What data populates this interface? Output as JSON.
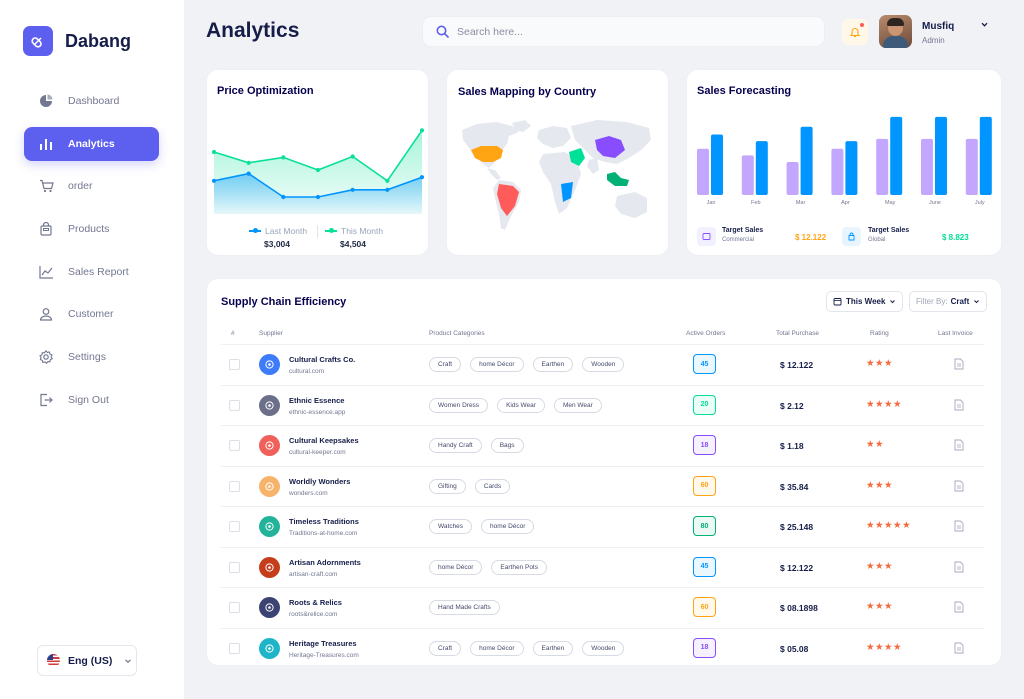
{
  "app": {
    "name": "Dabang"
  },
  "sidebar": {
    "items": [
      {
        "label": "Dashboard",
        "icon": "pie-chart-icon",
        "active": false
      },
      {
        "label": "Analytics",
        "icon": "bar-chart-icon",
        "active": true
      },
      {
        "label": "order",
        "icon": "cart-icon",
        "active": false
      },
      {
        "label": "Products",
        "icon": "bag-icon",
        "active": false
      },
      {
        "label": "Sales Report",
        "icon": "line-chart-icon",
        "active": false
      },
      {
        "label": "Customer",
        "icon": "user-icon",
        "active": false
      },
      {
        "label": "Settings",
        "icon": "gear-icon",
        "active": false
      },
      {
        "label": "Sign Out",
        "icon": "sign-out-icon",
        "active": false
      }
    ],
    "language": "Eng (US)"
  },
  "header": {
    "title": "Analytics",
    "search_placeholder": "Search here...",
    "user": {
      "name": "Musfiq",
      "role": "Admin"
    }
  },
  "price_optimization": {
    "title": "Price Optimization",
    "legend": [
      {
        "name": "Last Month",
        "value": "$3,004",
        "color": "#0095ff"
      },
      {
        "name": "This Month",
        "value": "$4,504",
        "color": "#07e098"
      }
    ]
  },
  "sales_mapping": {
    "title": "Sales Mapping by Country"
  },
  "sales_forecasting": {
    "title": "Sales Forecasting",
    "targets": [
      {
        "title": "Target Sales",
        "sub": "Commercial",
        "value": "$ 12.122",
        "color": "#ffa412"
      },
      {
        "title": "Target Sales",
        "sub": "Global",
        "value": "$ 8.823",
        "color": "#00e096"
      }
    ]
  },
  "chart_data": [
    {
      "type": "area",
      "title": "Price Optimization",
      "x": [
        1,
        2,
        3,
        4,
        5,
        6,
        7
      ],
      "series": [
        {
          "name": "This Month",
          "values": [
            60,
            48,
            54,
            40,
            55,
            28,
            84
          ],
          "color": "#07e098"
        },
        {
          "name": "Last Month",
          "values": [
            28,
            36,
            10,
            10,
            18,
            18,
            32
          ],
          "color": "#0095ff"
        }
      ],
      "ylim": [
        0,
        100
      ]
    },
    {
      "type": "bar",
      "title": "Sales Forecasting",
      "categories": [
        "Jan",
        "Feb",
        "Mar",
        "Apr",
        "May",
        "June",
        "July"
      ],
      "series": [
        {
          "name": "Target Sales Commercial",
          "values": [
            42,
            36,
            30,
            42,
            51,
            51,
            51
          ],
          "color": "#c3a7ff"
        },
        {
          "name": "Target Sales Global",
          "values": [
            55,
            49,
            62,
            49,
            71,
            71,
            71
          ],
          "color": "#0095ff"
        }
      ],
      "ylim": [
        0,
        80
      ]
    }
  ],
  "supply_chain": {
    "title": "Supply Chain Efficiency",
    "period": "This Week",
    "filter_label": "Filter By:",
    "filter_value": "Craft",
    "columns": [
      "#",
      "Supplier",
      "Product Categories",
      "Active Orders",
      "Total Purchase",
      "Rating",
      "Last Invoice"
    ],
    "rows": [
      {
        "name": "Cultural Crafts Co.",
        "url": "cultural.com",
        "logo_color": "#3e7bfa",
        "tags": [
          "Craft",
          "home Décor",
          "Earthen",
          "Wooden"
        ],
        "orders": "45",
        "order_color": "#0095ff",
        "purchase": "$ 12.122",
        "rating": 3
      },
      {
        "name": "Ethnic Essence",
        "url": "ethnic-essence.app",
        "logo_color": "#6c6f8a",
        "tags": [
          "Women Dress",
          "Kids Wear",
          "Men Wear"
        ],
        "orders": "20",
        "order_color": "#00e096",
        "purchase": "$ 2.12",
        "rating": 4
      },
      {
        "name": "Cultural Keepsakes",
        "url": "cultural-keeper.com",
        "logo_color": "#f0605a",
        "tags": [
          "Handy Craft",
          "Bags"
        ],
        "orders": "18",
        "order_color": "#884dff",
        "purchase": "$ 1.18",
        "rating": 2
      },
      {
        "name": "Worldly Wonders",
        "url": "wonders.com",
        "logo_color": "#f8b36b",
        "tags": [
          "Gifting",
          "Cards"
        ],
        "orders": "60",
        "order_color": "#ffa412",
        "purchase": "$ 35.84",
        "rating": 3
      },
      {
        "name": "Timeless Traditions",
        "url": "Traditions-at-home.com",
        "logo_color": "#22b39a",
        "tags": [
          "Watches",
          "home Décor"
        ],
        "orders": "80",
        "order_color": "#00b074",
        "purchase": "$ 25.148",
        "rating": 5
      },
      {
        "name": "Artisan Adornments",
        "url": "artisan-craft.com",
        "logo_color": "#c43e1c",
        "tags": [
          "home Décor",
          "Earthen Pots"
        ],
        "orders": "45",
        "order_color": "#0095ff",
        "purchase": "$ 12.122",
        "rating": 3
      },
      {
        "name": "Roots & Relics",
        "url": "roots&relice.com",
        "logo_color": "#3a4372",
        "tags": [
          "Hand Made Crafts"
        ],
        "orders": "60",
        "order_color": "#ffa412",
        "purchase": "$ 08.1898",
        "rating": 3
      },
      {
        "name": "Heritage Treasures",
        "url": "Heritage-Treasures.com",
        "logo_color": "#1fb4c7",
        "tags": [
          "Craft",
          "home Décor",
          "Earthen",
          "Wooden"
        ],
        "orders": "18",
        "order_color": "#884dff",
        "purchase": "$ 05.08",
        "rating": 4
      }
    ]
  }
}
